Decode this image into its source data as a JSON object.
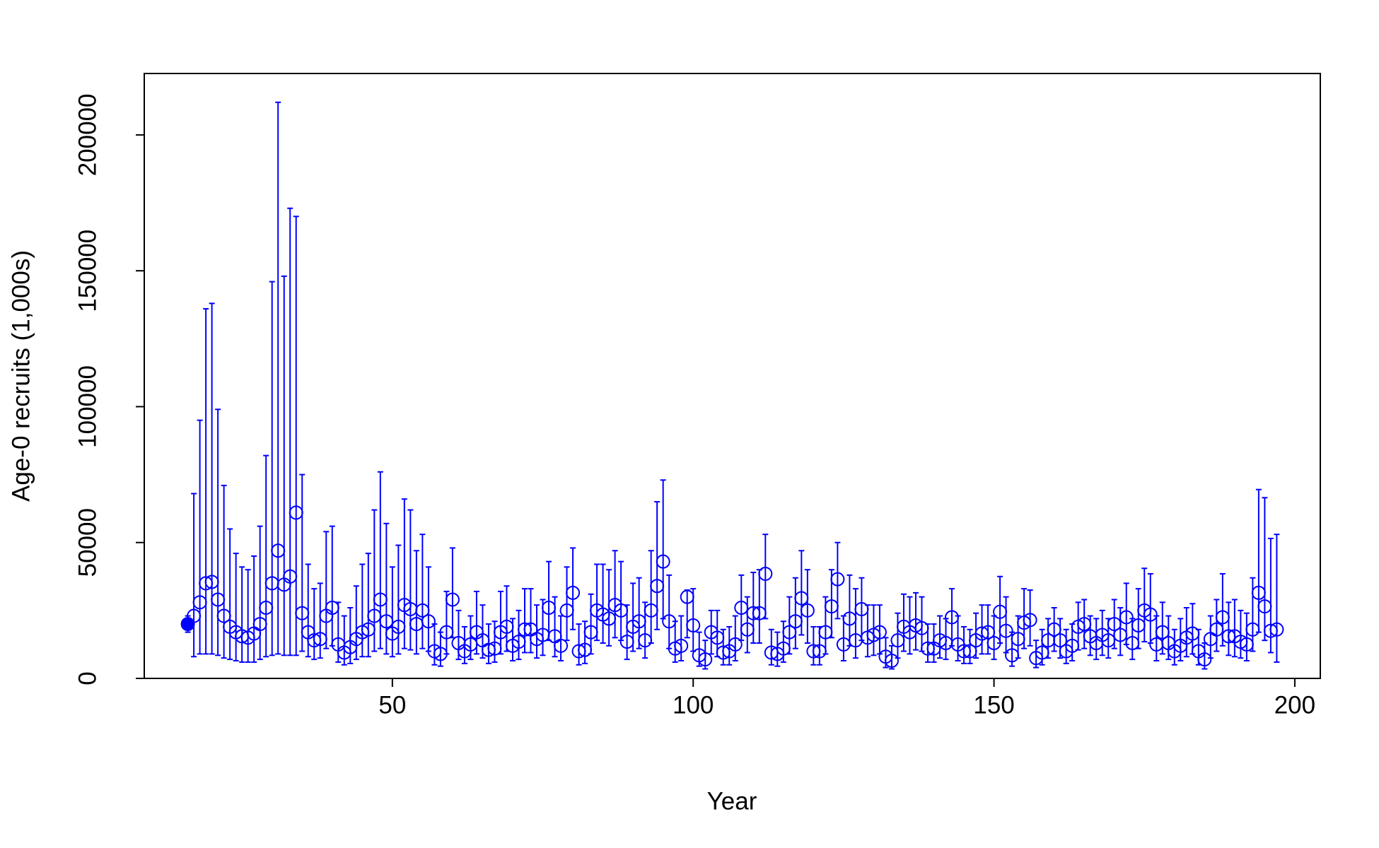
{
  "chart_data": {
    "type": "errorbar",
    "x_label": "Year",
    "y_label": "Age-0 recruits (1,000s)",
    "xlim": [
      8.76,
      204.24
    ],
    "ylim": [
      0,
      222600
    ],
    "xticks": [
      50,
      100,
      150,
      200
    ],
    "yticks": [
      0,
      50000,
      100000,
      150000,
      200000
    ],
    "series": [
      {
        "marker": "filled",
        "color": "#0000ff",
        "x": [
          16
        ],
        "values": [
          20000
        ],
        "lower": [
          17000
        ],
        "upper": [
          23000
        ]
      },
      {
        "marker": "open",
        "color": "#0000ff",
        "x": [
          17,
          18,
          19,
          20,
          21,
          22,
          23,
          24,
          25,
          26,
          27,
          28,
          29,
          30,
          31,
          32,
          33,
          34,
          35,
          36,
          37,
          38,
          39,
          40,
          41,
          42,
          43,
          44,
          45,
          46,
          47,
          48,
          49,
          50,
          51,
          52,
          53,
          54,
          55,
          56,
          57,
          58,
          59,
          60,
          61,
          62,
          63,
          64,
          65,
          66,
          67,
          68,
          69,
          70,
          71,
          72,
          73,
          74,
          75,
          76,
          77,
          78,
          79,
          80,
          81,
          82,
          83,
          84,
          85,
          86,
          87,
          88,
          89,
          90,
          91,
          92,
          93,
          94,
          95,
          96,
          97,
          98,
          99,
          100,
          101,
          102,
          103,
          104,
          105,
          106,
          107,
          108,
          109,
          110,
          111,
          112,
          113,
          114,
          115,
          116,
          117,
          118,
          119,
          120,
          121,
          122,
          123,
          124,
          125,
          126,
          127,
          128,
          129,
          130,
          131,
          132,
          133,
          134,
          135,
          136,
          137,
          138,
          139,
          140,
          141,
          142,
          143,
          144,
          145,
          146,
          147,
          148,
          149,
          150,
          151,
          152,
          153,
          154,
          155,
          156,
          157,
          158,
          159,
          160,
          161,
          162,
          163,
          164,
          165,
          166,
          167,
          168,
          169,
          170,
          171,
          172,
          173,
          174,
          175,
          176,
          177,
          178,
          179,
          180,
          181,
          182,
          183,
          184,
          185,
          186,
          187,
          188,
          189,
          190,
          191,
          192,
          193,
          194,
          195,
          196,
          197
        ],
        "values": [
          23000,
          28000,
          35000,
          35500,
          29000,
          23000,
          19000,
          17000,
          15500,
          15000,
          16500,
          20000,
          26000,
          35000,
          47000,
          34500,
          37500,
          61000,
          24000,
          17000,
          14000,
          14500,
          23000,
          26000,
          12500,
          9500,
          11500,
          14500,
          17000,
          18000,
          23000,
          29000,
          21000,
          16500,
          19000,
          27000,
          25500,
          20000,
          25000,
          21000,
          10000,
          9000,
          17000,
          29000,
          13000,
          10000,
          12500,
          17000,
          14000,
          10500,
          11000,
          17000,
          19000,
          12000,
          13500,
          18000,
          18000,
          14500,
          16000,
          26000,
          15500,
          12000,
          25000,
          31500,
          10000,
          10500,
          17000,
          25000,
          23500,
          22000,
          27000,
          25000,
          13500,
          19000,
          21000,
          14000,
          25000,
          34000,
          43000,
          21000,
          11000,
          12000,
          30000,
          19500,
          8500,
          7000,
          17000,
          15000,
          9500,
          10000,
          12500,
          26000,
          18000,
          24000,
          24000,
          38500,
          9500,
          9000,
          11000,
          17000,
          21000,
          29500,
          25000,
          10000,
          10000,
          17000,
          26500,
          36500,
          12500,
          22000,
          14000,
          25500,
          15000,
          16000,
          17000,
          8000,
          6500,
          14000,
          19000,
          17000,
          19500,
          18500,
          11000,
          11000,
          14000,
          13000,
          22500,
          12500,
          10000,
          10000,
          14000,
          16500,
          17000,
          13000,
          24500,
          17500,
          8500,
          14500,
          20500,
          21500,
          7500,
          9500,
          14000,
          18000,
          14000,
          10000,
          12000,
          19000,
          20000,
          15500,
          13000,
          16000,
          14000,
          20000,
          16000,
          22500,
          13000,
          19500,
          25000,
          23500,
          12500,
          17000,
          13000,
          10000,
          12000,
          15000,
          16500,
          10000,
          7000,
          14500,
          18000,
          22500,
          15500,
          15500,
          13500,
          12500,
          18000,
          31500,
          26500,
          17500,
          18000
        ],
        "lower": [
          8000,
          9000,
          9000,
          9000,
          8500,
          7500,
          7000,
          6500,
          6000,
          6000,
          6000,
          7000,
          8000,
          8500,
          9000,
          8500,
          8500,
          8500,
          10000,
          8000,
          7000,
          7500,
          11000,
          12000,
          6000,
          5000,
          5500,
          7000,
          8000,
          8000,
          10000,
          11000,
          9000,
          8000,
          9000,
          11000,
          10500,
          9000,
          11000,
          10000,
          5000,
          4500,
          9000,
          15000,
          7000,
          5500,
          7000,
          9000,
          7500,
          5500,
          6000,
          9000,
          10000,
          6500,
          7000,
          9500,
          9500,
          7500,
          8500,
          14000,
          8000,
          6500,
          14000,
          18000,
          5000,
          5500,
          9000,
          14000,
          13000,
          12000,
          15000,
          14000,
          7000,
          10000,
          11000,
          7500,
          13000,
          18000,
          22000,
          11000,
          6000,
          6500,
          15000,
          10000,
          4500,
          3500,
          9000,
          8000,
          5000,
          5000,
          6500,
          14000,
          9500,
          13000,
          13000,
          22000,
          5000,
          4500,
          6000,
          9000,
          11000,
          16000,
          13000,
          5000,
          5000,
          9000,
          15000,
          22000,
          6500,
          12000,
          7500,
          14000,
          8000,
          8500,
          9000,
          4000,
          3500,
          7500,
          10000,
          9000,
          10500,
          10000,
          6000,
          6000,
          7500,
          7000,
          12000,
          6500,
          5500,
          5500,
          7500,
          9000,
          9000,
          7000,
          13000,
          9500,
          4500,
          7500,
          11000,
          12000,
          4000,
          5000,
          7500,
          10000,
          7500,
          5500,
          6500,
          10500,
          11000,
          8500,
          7000,
          8500,
          7500,
          11000,
          8500,
          12500,
          7000,
          11000,
          13500,
          13000,
          6500,
          9000,
          7000,
          5000,
          6500,
          8000,
          9000,
          5000,
          3500,
          7500,
          10000,
          12000,
          8500,
          8000,
          7500,
          6500,
          10000,
          17000,
          14000,
          9500,
          6000
        ],
        "upper": [
          68000,
          95000,
          136000,
          138000,
          99000,
          71000,
          55000,
          46000,
          41000,
          40000,
          45000,
          56000,
          82000,
          146000,
          212000,
          148000,
          173000,
          170000,
          75000,
          42000,
          33000,
          35000,
          54000,
          56000,
          28000,
          23000,
          26000,
          34000,
          42000,
          46000,
          62000,
          76000,
          57000,
          41000,
          49000,
          66000,
          62000,
          47000,
          53000,
          41000,
          20000,
          17000,
          32000,
          48000,
          25000,
          19000,
          23000,
          32000,
          27000,
          20000,
          21000,
          32000,
          34000,
          22000,
          25000,
          33000,
          33000,
          27000,
          29000,
          43000,
          30000,
          23000,
          41000,
          48000,
          20000,
          21000,
          31000,
          42000,
          42000,
          40000,
          47000,
          43000,
          27000,
          35000,
          37000,
          28000,
          47000,
          65000,
          73000,
          38000,
          21000,
          23000,
          32500,
          33000,
          17000,
          14000,
          25000,
          25000,
          18000,
          19000,
          23000,
          38000,
          30000,
          39000,
          40000,
          53000,
          18000,
          17000,
          21000,
          30000,
          37000,
          47000,
          40000,
          19000,
          19000,
          30000,
          40000,
          50000,
          23000,
          38000,
          33000,
          37000,
          27000,
          27000,
          27000,
          15000,
          12000,
          24000,
          31000,
          30000,
          31500,
          30000,
          20000,
          20000,
          23000,
          22000,
          33000,
          23000,
          19000,
          18000,
          24000,
          27000,
          27000,
          23000,
          37500,
          30000,
          17000,
          23000,
          33000,
          32500,
          14000,
          18000,
          22000,
          26000,
          22000,
          18000,
          20000,
          28000,
          29000,
          23000,
          22000,
          25000,
          22000,
          29000,
          26000,
          35000,
          22000,
          33000,
          40500,
          38500,
          23000,
          28000,
          23000,
          18000,
          22000,
          26000,
          27500,
          18000,
          13000,
          23000,
          29000,
          38500,
          28000,
          29000,
          25000,
          24000,
          37000,
          69500,
          66500,
          51500,
          53000
        ]
      }
    ]
  }
}
